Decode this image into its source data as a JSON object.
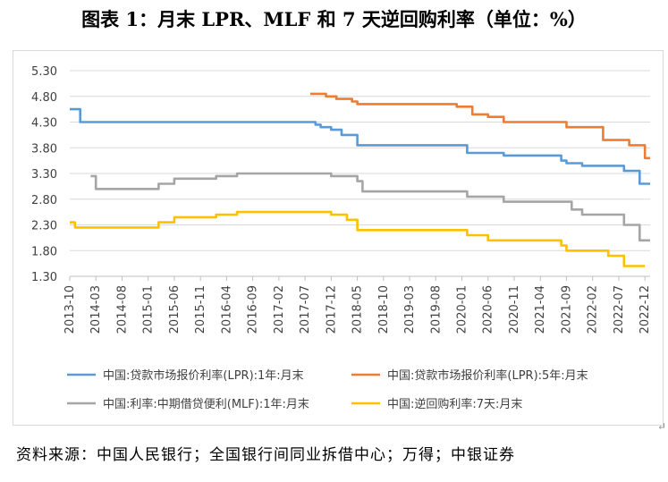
{
  "title": "图表 1：月末 LPR、MLF 和 7 天逆回购利率（单位：%）",
  "source": "资料来源：中国人民银行；全国银行间同业拆借中心；万得；中银证券",
  "pilcrow": "↵",
  "chart_data": {
    "type": "line",
    "ylim": [
      1.3,
      5.3
    ],
    "yticks": [
      "5.30",
      "4.80",
      "4.30",
      "3.80",
      "3.30",
      "2.80",
      "2.30",
      "1.80",
      "1.30"
    ],
    "xticks": [
      "2013-10",
      "2014-03",
      "2014-08",
      "2015-01",
      "2015-06",
      "2015-11",
      "2016-04",
      "2016-09",
      "2017-02",
      "2017-07",
      "2017-12",
      "2018-05",
      "2018-10",
      "2019-03",
      "2019-08",
      "2020-01",
      "2020-06",
      "2020-11",
      "2021-04",
      "2021-09",
      "2022-02",
      "2022-07",
      "2022-12"
    ],
    "x_start": "2013-10",
    "x_end": "2023-01",
    "grid": "horizontal",
    "legend_position": "bottom",
    "colors": {
      "lpr1y": "#5B9BD5",
      "lpr5y": "#ED7D31",
      "mlf": "#A5A5A5",
      "rr7d": "#FFC000"
    },
    "series": [
      {
        "key": "lpr1y",
        "name": "中国:贷款市场报价利率(LPR):1年:月末",
        "steps": [
          [
            "2013-10",
            4.55
          ],
          [
            "2013-12",
            4.3
          ],
          [
            "2017-09",
            4.25
          ],
          [
            "2017-10",
            4.2
          ],
          [
            "2017-12",
            4.15
          ],
          [
            "2018-02",
            4.05
          ],
          [
            "2018-05",
            3.85
          ],
          [
            "2020-02",
            3.7
          ],
          [
            "2020-09",
            3.65
          ],
          [
            "2021-08",
            3.55
          ],
          [
            "2021-09",
            3.5
          ],
          [
            "2021-12",
            3.45
          ],
          [
            "2022-08",
            3.35
          ],
          [
            "2022-11",
            3.1
          ]
        ],
        "end": "2023-01"
      },
      {
        "key": "lpr5y",
        "name": "中国:贷款市场报价利率(LPR):5年:月末",
        "steps": [
          [
            "2017-08",
            4.85
          ],
          [
            "2017-11",
            4.8
          ],
          [
            "2018-01",
            4.75
          ],
          [
            "2018-04",
            4.7
          ],
          [
            "2018-05",
            4.65
          ],
          [
            "2019-12",
            4.6
          ],
          [
            "2020-03",
            4.45
          ],
          [
            "2020-06",
            4.4
          ],
          [
            "2020-09",
            4.3
          ],
          [
            "2021-09",
            4.2
          ],
          [
            "2022-04",
            3.95
          ],
          [
            "2022-09",
            3.85
          ],
          [
            "2022-12",
            3.6
          ]
        ],
        "end": "2023-01"
      },
      {
        "key": "mlf",
        "name": "中国:利率:中期借贷便利(MLF):1年:月末",
        "steps": [
          [
            "2014-02",
            3.25
          ],
          [
            "2014-03",
            3.0
          ],
          [
            "2015-03",
            3.1
          ],
          [
            "2015-06",
            3.2
          ],
          [
            "2016-02",
            3.25
          ],
          [
            "2016-06",
            3.3
          ],
          [
            "2017-12",
            3.25
          ],
          [
            "2018-05",
            3.15
          ],
          [
            "2018-06",
            2.95
          ],
          [
            "2020-02",
            2.85
          ],
          [
            "2020-09",
            2.75
          ],
          [
            "2021-10",
            2.6
          ],
          [
            "2021-12",
            2.5
          ],
          [
            "2022-08",
            2.3
          ],
          [
            "2022-11",
            2.0
          ]
        ],
        "end": "2023-01"
      },
      {
        "key": "rr7d",
        "name": "中国:逆回购利率:7天:月末",
        "steps": [
          [
            "2013-10",
            2.35
          ],
          [
            "2013-11",
            2.25
          ],
          [
            "2015-03",
            2.35
          ],
          [
            "2015-06",
            2.45
          ],
          [
            "2016-02",
            2.5
          ],
          [
            "2016-06",
            2.55
          ],
          [
            "2017-12",
            2.5
          ],
          [
            "2018-03",
            2.4
          ],
          [
            "2018-05",
            2.2
          ],
          [
            "2020-02",
            2.1
          ],
          [
            "2020-06",
            2.0
          ],
          [
            "2021-08",
            1.9
          ],
          [
            "2021-09",
            1.8
          ],
          [
            "2022-05",
            1.7
          ],
          [
            "2022-08",
            1.5
          ]
        ],
        "end": "2022-12"
      }
    ],
    "legend_layout": [
      [
        "lpr1y",
        "lpr5y"
      ],
      [
        "mlf",
        "rr7d"
      ]
    ]
  }
}
